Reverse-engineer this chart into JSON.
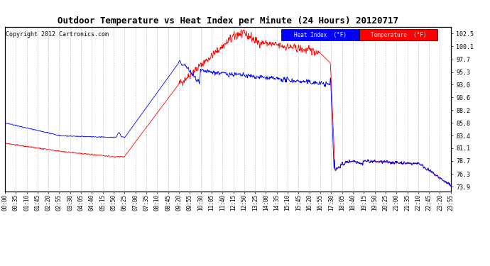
{
  "title": "Outdoor Temperature vs Heat Index per Minute (24 Hours) 20120717",
  "copyright": "Copyright 2012 Cartronics.com",
  "ylabel_right_ticks": [
    73.9,
    76.3,
    78.7,
    81.1,
    83.4,
    85.8,
    88.2,
    90.6,
    93.0,
    95.3,
    97.7,
    100.1,
    102.5
  ],
  "xtick_labels": [
    "00:00",
    "00:35",
    "01:10",
    "01:45",
    "02:20",
    "02:55",
    "03:30",
    "04:05",
    "04:40",
    "05:15",
    "05:50",
    "06:25",
    "07:00",
    "07:35",
    "08:10",
    "08:45",
    "09:20",
    "09:55",
    "10:30",
    "11:05",
    "11:40",
    "12:15",
    "12:50",
    "13:25",
    "14:00",
    "14:35",
    "15:10",
    "15:45",
    "16:20",
    "16:55",
    "17:30",
    "18:05",
    "18:40",
    "19:15",
    "19:50",
    "20:25",
    "21:00",
    "21:35",
    "22:10",
    "22:45",
    "23:20",
    "23:55"
  ],
  "heat_index_color": "#0000FF",
  "temperature_color": "#FF0000",
  "background_color": "#FFFFFF",
  "grid_color": "#AAAAAA",
  "title_fontsize": 9,
  "copyright_fontsize": 6,
  "tick_fontsize": 5.5,
  "ylim": [
    73.0,
    103.8
  ],
  "xlim": [
    0,
    1439
  ]
}
